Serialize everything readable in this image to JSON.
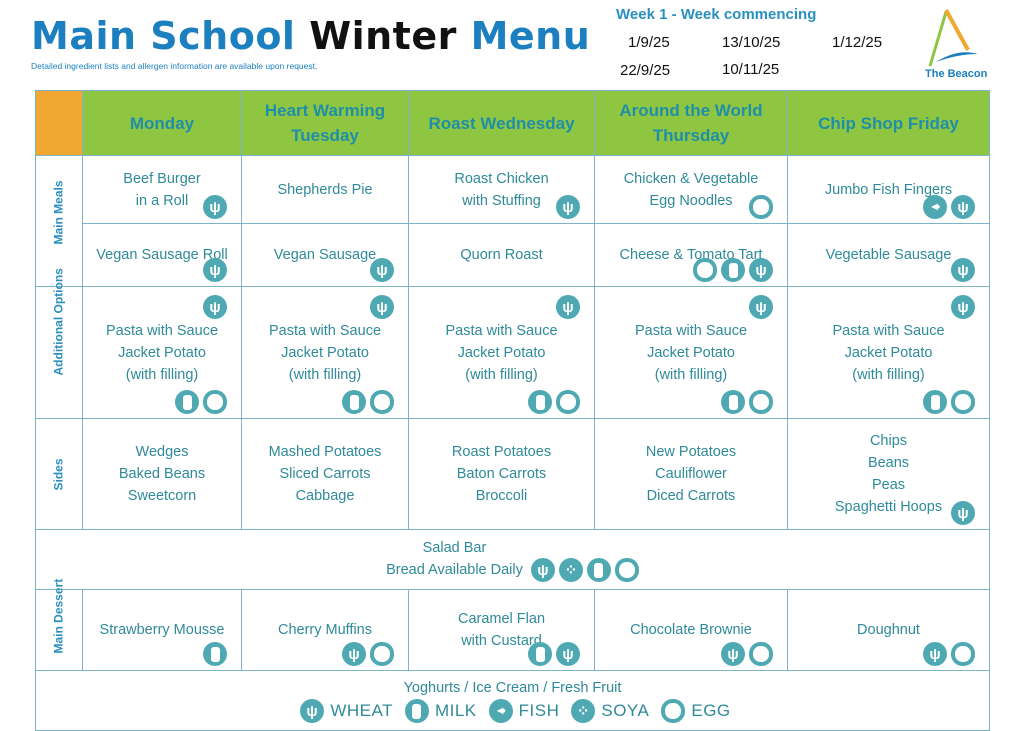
{
  "header": {
    "title_1": "Main School",
    "title_2": "Winter",
    "title_3": "Menu",
    "subtitle": "Detailed ingredient lists and allergen information are available upon request.",
    "week_label": "Week 1 - Week commencing",
    "dates": [
      "1/9/25",
      "13/10/25",
      "1/12/25",
      "22/9/25",
      "10/11/25"
    ],
    "logo_text": "The Beacon"
  },
  "days": [
    "Monday",
    "Heart Warming Tuesday",
    "Roast Wednesday",
    "Around the World Thursday",
    "Chip Shop Friday"
  ],
  "rows": [
    {
      "label": "Main Meals",
      "cells": [
        {
          "text": [
            "Beef Burger",
            "in a Roll"
          ],
          "allergens": [
            "wheat"
          ]
        },
        {
          "text": [
            "Shepherds Pie"
          ],
          "allergens": []
        },
        {
          "text": [
            "Roast Chicken",
            "with Stuffing"
          ],
          "allergens": [
            "wheat"
          ]
        },
        {
          "text": [
            "Chicken & Vegetable",
            "Egg Noodles"
          ],
          "allergens": [
            "egg"
          ]
        },
        {
          "text": [
            "Jumbo Fish Fingers"
          ],
          "allergens": [
            "fish",
            "wheat"
          ]
        }
      ]
    },
    {
      "label": "",
      "cells": [
        {
          "text": [
            "Vegan Sausage Roll"
          ],
          "allergens": [
            "wheat"
          ]
        },
        {
          "text": [
            "Vegan Sausage"
          ],
          "allergens": [
            "wheat"
          ]
        },
        {
          "text": [
            "Quorn Roast"
          ],
          "allergens": []
        },
        {
          "text": [
            "Cheese & Tomato Tart"
          ],
          "allergens": [
            "egg",
            "milk",
            "wheat"
          ]
        },
        {
          "text": [
            "Vegetable Sausage"
          ],
          "allergens": [
            "wheat"
          ]
        }
      ]
    },
    {
      "label": "Additional Options",
      "cells": [
        {
          "text": [
            "Pasta with Sauce",
            "Jacket Potato",
            "(with filling)"
          ],
          "top": [
            "wheat"
          ],
          "allergens": [
            "milk",
            "egg"
          ]
        },
        {
          "text": [
            "Pasta with Sauce",
            "Jacket Potato",
            "(with filling)"
          ],
          "top": [
            "wheat"
          ],
          "allergens": [
            "milk",
            "egg"
          ]
        },
        {
          "text": [
            "Pasta with Sauce",
            "Jacket Potato",
            "(with filling)"
          ],
          "top": [
            "wheat"
          ],
          "allergens": [
            "milk",
            "egg"
          ]
        },
        {
          "text": [
            "Pasta with Sauce",
            "Jacket Potato",
            "(with filling)"
          ],
          "top": [
            "wheat"
          ],
          "allergens": [
            "milk",
            "egg"
          ]
        },
        {
          "text": [
            "Pasta with Sauce",
            "Jacket Potato",
            "(with filling)"
          ],
          "top": [
            "wheat"
          ],
          "allergens": [
            "milk",
            "egg"
          ]
        }
      ]
    },
    {
      "label": "Sides",
      "cells": [
        {
          "text": [
            "Wedges",
            "Baked Beans",
            "Sweetcorn"
          ],
          "allergens": []
        },
        {
          "text": [
            "Mashed Potatoes",
            "Sliced Carrots",
            "Cabbage"
          ],
          "allergens": []
        },
        {
          "text": [
            "Roast Potatoes",
            "Baton Carrots",
            "Broccoli"
          ],
          "allergens": []
        },
        {
          "text": [
            "New Potatoes",
            "Cauliflower",
            "Diced Carrots"
          ],
          "allergens": []
        },
        {
          "text": [
            "Chips",
            "Beans",
            "Peas",
            "Spaghetti Hoops"
          ],
          "allergens": [
            "wheat"
          ]
        }
      ]
    }
  ],
  "salad": {
    "text": [
      "Salad Bar",
      "Bread Available Daily"
    ],
    "allergens": [
      "wheat",
      "soya",
      "milk",
      "egg"
    ]
  },
  "dessert": {
    "label": "Main Dessert",
    "cells": [
      {
        "text": [
          "Strawberry Mousse"
        ],
        "allergens": [
          "milk"
        ]
      },
      {
        "text": [
          "Cherry Muffins"
        ],
        "allergens": [
          "wheat",
          "egg"
        ]
      },
      {
        "text": [
          "Caramel Flan",
          "with Custard"
        ],
        "allergens": [
          "milk",
          "wheat"
        ]
      },
      {
        "text": [
          "Chocolate Brownie"
        ],
        "allergens": [
          "wheat",
          "egg"
        ]
      },
      {
        "text": [
          "Doughnut"
        ],
        "allergens": [
          "wheat",
          "egg"
        ]
      }
    ]
  },
  "footer": {
    "text": "Yoghurts / Ice Cream / Fresh Fruit",
    "legend": [
      {
        "icon": "wheat",
        "label": "WHEAT"
      },
      {
        "icon": "milk",
        "label": "MILK"
      },
      {
        "icon": "fish",
        "label": "FISH"
      },
      {
        "icon": "soya",
        "label": "SOYA"
      },
      {
        "icon": "egg",
        "label": "EGG"
      }
    ]
  },
  "colors": {
    "title_blue": "#1c7fbf",
    "header_green": "#8fc641",
    "corner_orange": "#f0a830",
    "icon_teal": "#4fa9b3"
  }
}
